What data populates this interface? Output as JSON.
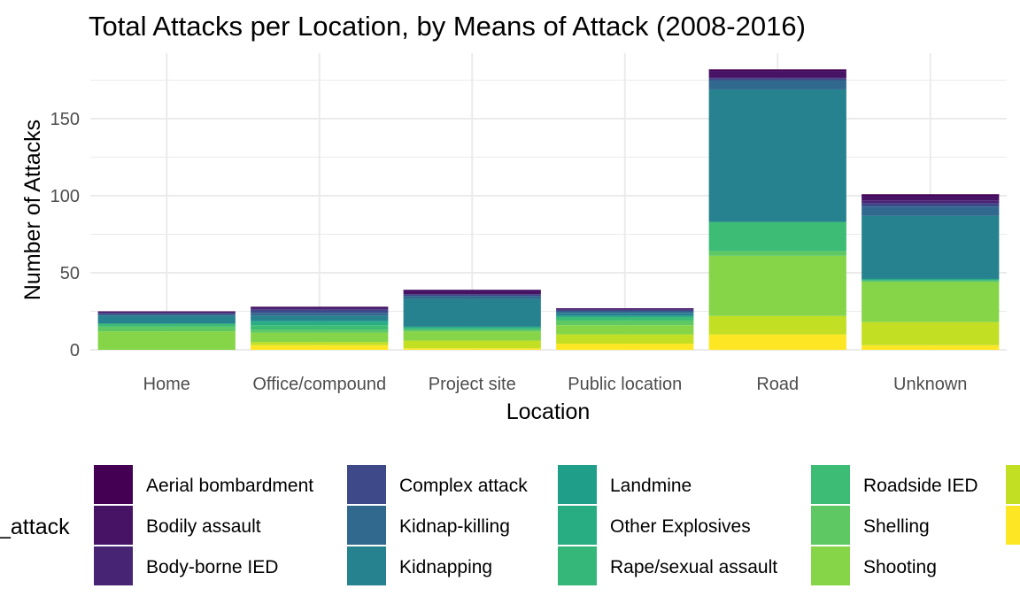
{
  "chart_data": {
    "type": "bar",
    "stacked": true,
    "title": "Total Attacks per Location, by Means of Attack (2008-2016)",
    "xlabel": "Location",
    "ylabel": "Number of Attacks",
    "ylim": [
      0,
      190
    ],
    "yticks": [
      0,
      50,
      100,
      150
    ],
    "grid": true,
    "legend_position": "bottom",
    "legend_title": "_attack",
    "categories": [
      "Home",
      "Office/compound",
      "Project site",
      "Public location",
      "Road",
      "Unknown"
    ],
    "series": [
      {
        "name": "Aerial bombardment",
        "color": "#440154",
        "values": [
          0,
          0,
          0,
          0,
          1,
          1
        ]
      },
      {
        "name": "Bodily assault",
        "color": "#471365",
        "values": [
          1,
          1,
          3,
          1,
          4,
          3
        ]
      },
      {
        "name": "Body-borne IED",
        "color": "#482475",
        "values": [
          0,
          1,
          0,
          0,
          1,
          2
        ]
      },
      {
        "name": "Complex attack",
        "color": "#3e4989",
        "values": [
          1,
          2,
          1,
          1,
          1,
          2
        ]
      },
      {
        "name": "Kidnap-killing",
        "color": "#31688e",
        "values": [
          1,
          2,
          2,
          1,
          6,
          6
        ]
      },
      {
        "name": "Kidnapping",
        "color": "#26828e",
        "values": [
          5,
          3,
          18,
          2,
          86,
          41
        ]
      },
      {
        "name": "Landmine",
        "color": "#1f9e89",
        "values": [
          0,
          1,
          0,
          0,
          0,
          0
        ]
      },
      {
        "name": "Other Explosives",
        "color": "#27ad81",
        "values": [
          0,
          2,
          1,
          1,
          0,
          1
        ]
      },
      {
        "name": "Rape/sexual assault",
        "color": "#35b779",
        "values": [
          0,
          0,
          0,
          0,
          0,
          0
        ]
      },
      {
        "name": "Roadside IED",
        "color": "#3cbc75",
        "values": [
          2,
          3,
          1,
          2,
          19,
          0
        ]
      },
      {
        "name": "Shelling",
        "color": "#5ec962",
        "values": [
          3,
          2,
          1,
          3,
          3,
          1
        ]
      },
      {
        "name": "Shooting",
        "color": "#86d549",
        "values": [
          12,
          6,
          6,
          6,
          39,
          26
        ]
      },
      {
        "name": "",
        "color": "#c2df23",
        "values": [
          0,
          2,
          5,
          6,
          12,
          15
        ]
      },
      {
        "name": "",
        "color": "#fde725",
        "values": [
          0,
          3,
          1,
          4,
          10,
          3
        ]
      }
    ]
  }
}
